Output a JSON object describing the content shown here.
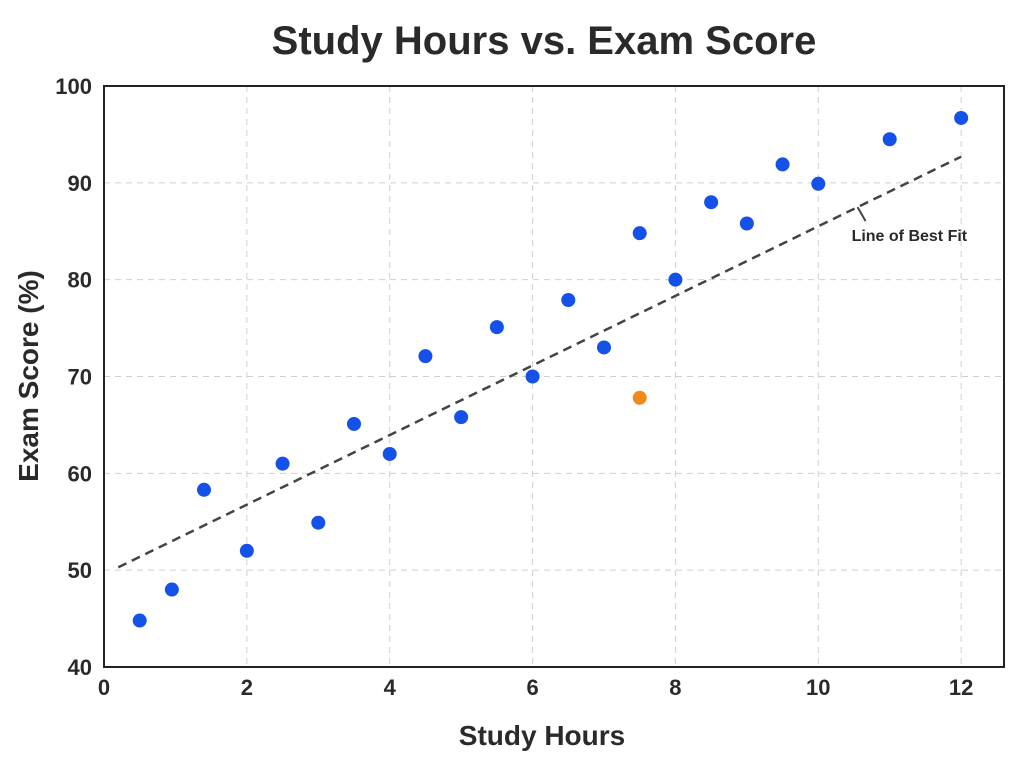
{
  "chart_data": {
    "type": "scatter",
    "title": "Study Hours vs. Exam Score",
    "xlabel": "Study Hours",
    "ylabel": "Exam Score (%)",
    "xlim": [
      0,
      12.6
    ],
    "ylim": [
      40,
      100
    ],
    "xticks": [
      0,
      2,
      4,
      6,
      8,
      10,
      12
    ],
    "yticks": [
      40,
      50,
      60,
      70,
      80,
      90,
      100
    ],
    "grid": true,
    "series": [
      {
        "color": "#1351e8",
        "points": [
          [
            0.5,
            44.8
          ],
          [
            0.95,
            48.0
          ],
          [
            1.4,
            58.3
          ],
          [
            2.0,
            52.0
          ],
          [
            2.5,
            61.0
          ],
          [
            3.0,
            54.9
          ],
          [
            3.5,
            65.1
          ],
          [
            4.0,
            62.0
          ],
          [
            4.5,
            72.1
          ],
          [
            5.0,
            65.8
          ],
          [
            5.5,
            75.1
          ],
          [
            6.0,
            70.0
          ],
          [
            6.5,
            77.9
          ],
          [
            7.0,
            73.0
          ],
          [
            7.5,
            84.8
          ],
          [
            8.0,
            80.0
          ],
          [
            8.5,
            88.0
          ],
          [
            9.0,
            85.8
          ],
          [
            9.5,
            91.9
          ],
          [
            10.0,
            89.9
          ],
          [
            11.0,
            94.5
          ],
          [
            12.0,
            96.7
          ]
        ]
      },
      {
        "color": "#f28a1b",
        "points": [
          [
            7.5,
            67.8
          ]
        ]
      }
    ],
    "fit_line": {
      "label": "Line of Best Fit",
      "color": "#444444",
      "start": [
        0.2,
        50.3
      ],
      "end": [
        12.0,
        92.7
      ]
    }
  }
}
